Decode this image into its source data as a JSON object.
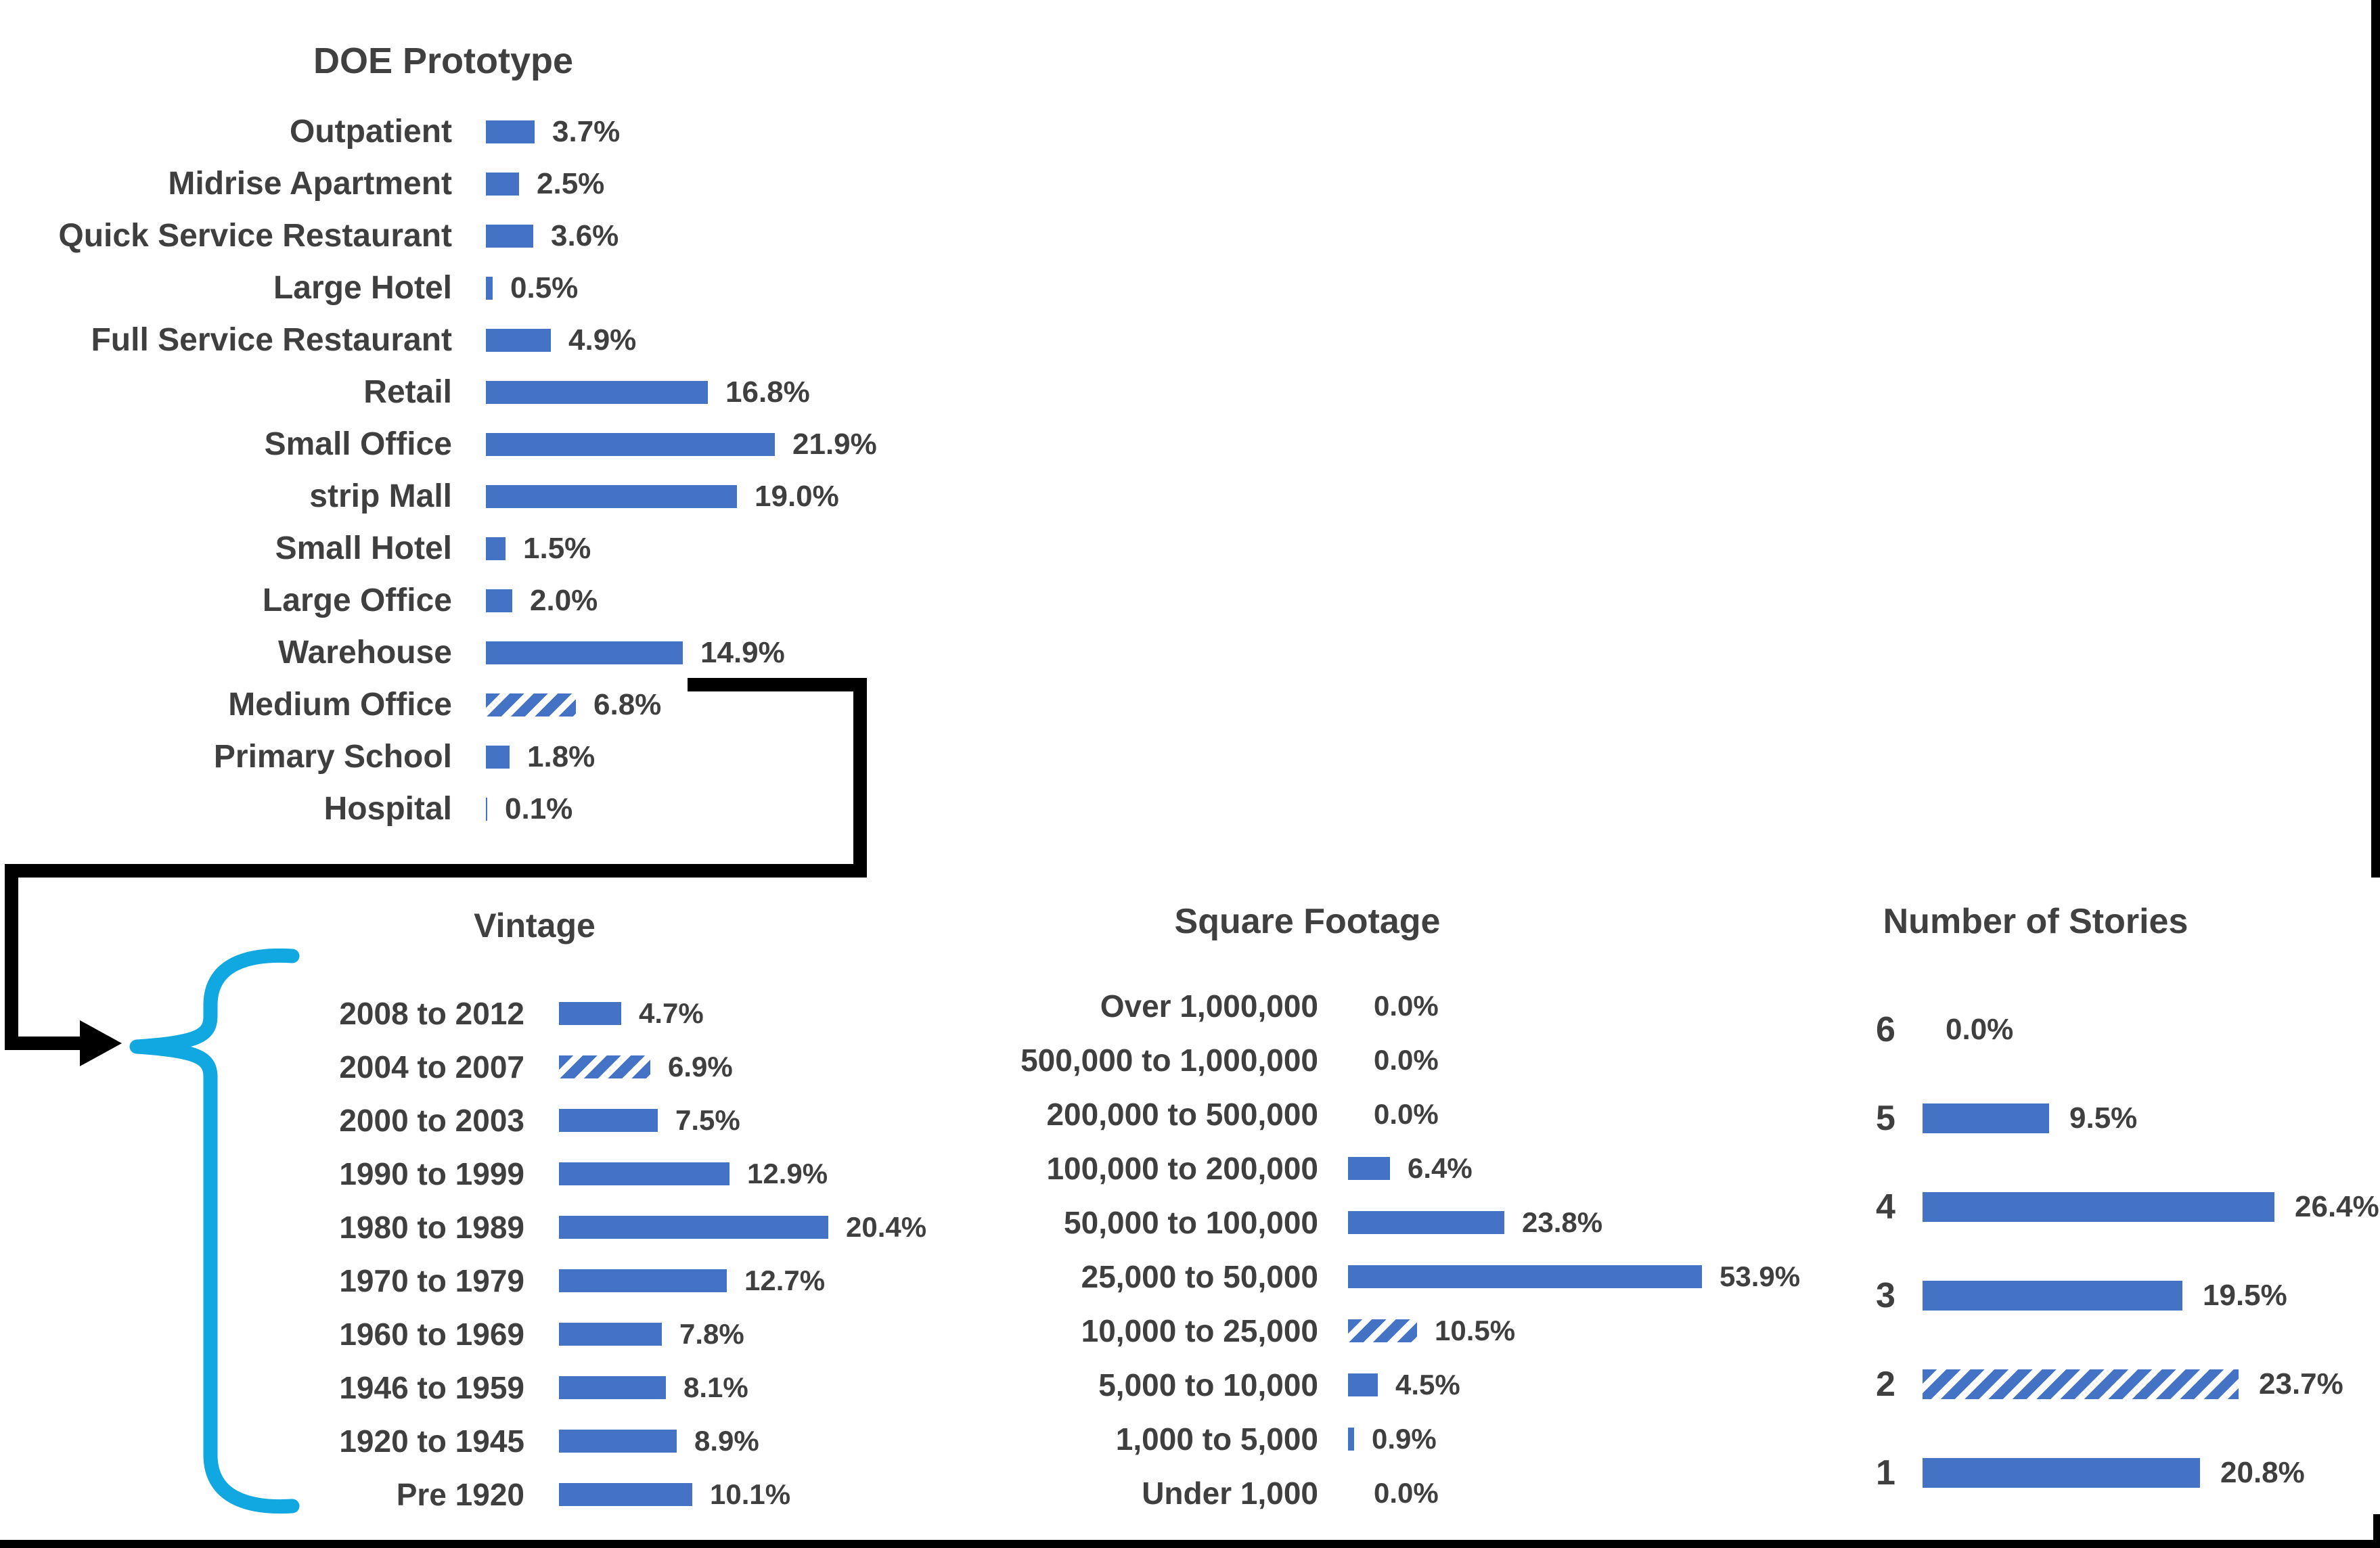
{
  "page": {
    "background": "#ffffff"
  },
  "colors": {
    "bar_blue": "#4472C4",
    "hatch_blue": "#4472C4",
    "brace_cyan": "#11A8E1",
    "connector_black": "#000000",
    "label_gray": "#3F3F3F",
    "title_gray": "#404040"
  },
  "annotations": {
    "connector_note": "black elbow arrow from the Medium Office bar pointing to the Vintage chart group",
    "brace_note": "cyan left curly brace grouping all Vintage categories"
  },
  "chart_data": [
    {
      "type": "bar",
      "orientation": "horizontal",
      "title": "DOE Prototype",
      "unit": "%",
      "value_axis": "hidden",
      "xlim": [
        0,
        25
      ],
      "categories": [
        "Outpatient",
        "Midrise Apartment",
        "Quick Service Restaurant",
        "Large Hotel",
        "Full Service Restaurant",
        "Retail",
        "Small Office",
        "strip Mall",
        "Small Hotel",
        "Large Office",
        "Warehouse",
        "Medium Office",
        "Primary School",
        "Hospital"
      ],
      "values": [
        3.7,
        2.5,
        3.6,
        0.5,
        4.9,
        16.8,
        21.9,
        19.0,
        1.5,
        2.0,
        14.9,
        6.8,
        1.8,
        0.1
      ],
      "labels": [
        "3.7%",
        "2.5%",
        "3.6%",
        "0.5%",
        "4.9%",
        "16.8%",
        "21.9%",
        "19.0%",
        "1.5%",
        "2.0%",
        "14.9%",
        "6.8%",
        "1.8%",
        "0.1%"
      ],
      "hatched_index": 11
    },
    {
      "type": "bar",
      "orientation": "horizontal",
      "title": "Vintage",
      "unit": "%",
      "value_axis": "hidden",
      "xlim": [
        0,
        25
      ],
      "categories": [
        "2008 to 2012",
        "2004 to 2007",
        "2000 to 2003",
        "1990 to 1999",
        "1980 to 1989",
        "1970 to 1979",
        "1960 to 1969",
        "1946 to 1959",
        "1920 to 1945",
        "Pre 1920"
      ],
      "values": [
        4.7,
        6.9,
        7.5,
        12.9,
        20.4,
        12.7,
        7.8,
        8.1,
        8.9,
        10.1
      ],
      "labels": [
        "4.7%",
        "6.9%",
        "7.5%",
        "12.9%",
        "20.4%",
        "12.7%",
        "7.8%",
        "8.1%",
        "8.9%",
        "10.1%"
      ],
      "hatched_index": 1
    },
    {
      "type": "bar",
      "orientation": "horizontal",
      "title": "Square Footage",
      "unit": "%",
      "value_axis": "hidden",
      "xlim": [
        0,
        60
      ],
      "categories": [
        "Over 1,000,000",
        "500,000 to 1,000,000",
        "200,000 to 500,000",
        "100,000 to 200,000",
        "50,000 to 100,000",
        "25,000 to 50,000",
        "10,000 to 25,000",
        "5,000 to 10,000",
        "1,000 to 5,000",
        "Under 1,000"
      ],
      "values": [
        0.0,
        0.0,
        0.0,
        6.4,
        23.8,
        53.9,
        10.5,
        4.5,
        0.9,
        0.0
      ],
      "labels": [
        "0.0%",
        "0.0%",
        "0.0%",
        "6.4%",
        "23.8%",
        "53.9%",
        "10.5%",
        "4.5%",
        "0.9%",
        "0.0%"
      ],
      "hatched_index": 6
    },
    {
      "type": "bar",
      "orientation": "horizontal",
      "title": "Number of Stories",
      "unit": "%",
      "value_axis": "hidden",
      "xlim": [
        0,
        30
      ],
      "categories": [
        "6",
        "5",
        "4",
        "3",
        "2",
        "1"
      ],
      "values": [
        0.0,
        9.5,
        26.4,
        19.5,
        23.7,
        20.8
      ],
      "labels": [
        "0.0%",
        "9.5%",
        "26.4%",
        "19.5%",
        "23.7%",
        "20.8%"
      ],
      "hatched_index": 4
    }
  ]
}
